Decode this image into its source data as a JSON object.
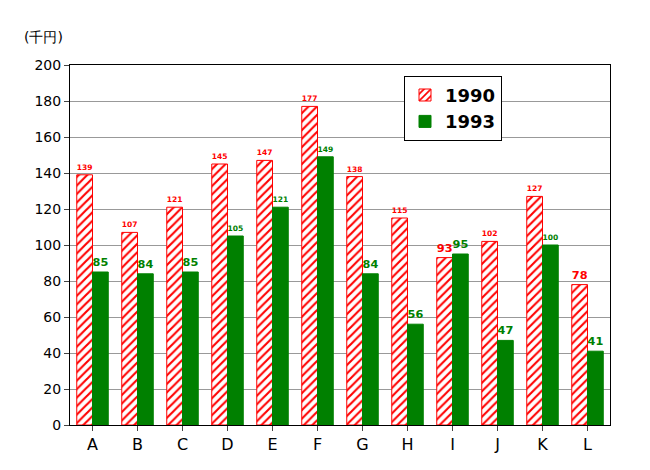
{
  "chart_data": {
    "type": "bar",
    "y_label": "(千円)",
    "categories": [
      "A",
      "B",
      "C",
      "D",
      "E",
      "F",
      "G",
      "H",
      "I",
      "J",
      "K",
      "L"
    ],
    "series": [
      {
        "name": "1990",
        "color": "#ff0000",
        "marker": "hatched",
        "values": [
          139,
          107,
          121,
          145,
          147,
          177,
          138,
          115,
          93,
          102,
          127,
          78
        ]
      },
      {
        "name": "1993",
        "color": "#008000",
        "marker": "solid",
        "values": [
          85,
          84,
          85,
          105,
          121,
          149,
          84,
          56,
          95,
          47,
          100,
          41
        ]
      }
    ],
    "ylim": [
      0,
      200
    ],
    "yticks": [
      0,
      20,
      40,
      60,
      80,
      100,
      120,
      140,
      160,
      180,
      200
    ],
    "grid": true,
    "legend": "upper right",
    "data_labels": true
  }
}
